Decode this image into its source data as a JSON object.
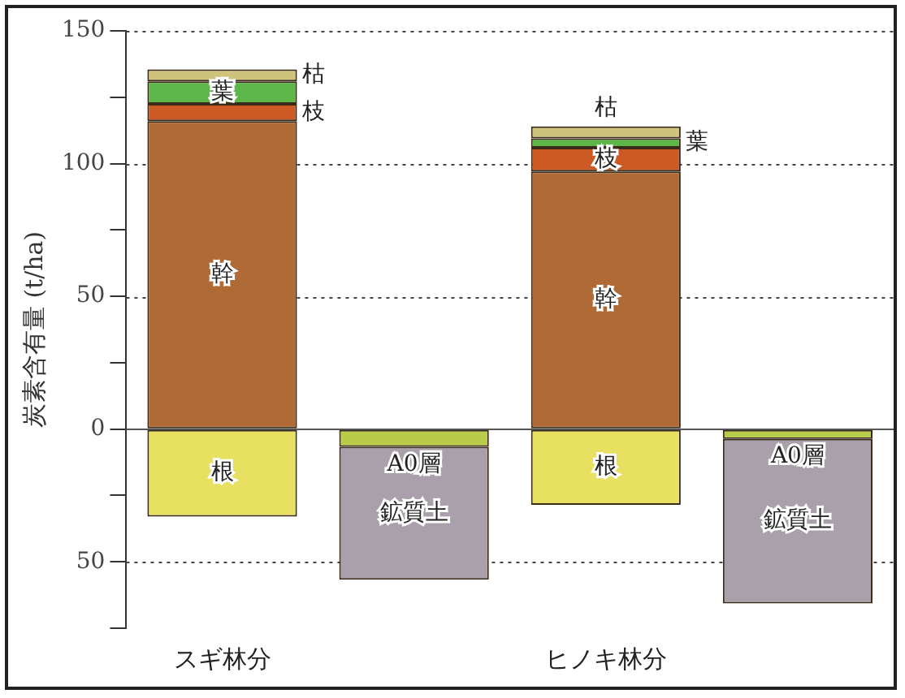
{
  "chart_data": {
    "type": "bar",
    "stacked": true,
    "ylabel": "炭素含有量 (t/ha)",
    "categories": [
      "スギ林分",
      null,
      "ヒノキ林分",
      null
    ],
    "series": [
      {
        "name": "幹",
        "color": "#b06a35",
        "values": [
          116,
          null,
          97,
          null
        ]
      },
      {
        "name": "枝",
        "color": "#cc5a25",
        "values": [
          6.5,
          null,
          9,
          null
        ]
      },
      {
        "name": "葉",
        "color": "#5cb648",
        "values": [
          8.5,
          null,
          3.5,
          null
        ]
      },
      {
        "name": "枯",
        "color": "#cfc27a",
        "values": [
          4.5,
          null,
          4.5,
          null
        ]
      },
      {
        "name": "根",
        "color": "#e8e060",
        "values": [
          -33,
          null,
          -28.5,
          null
        ]
      },
      {
        "name": "A0層",
        "color": "#b8cc4a",
        "values": [
          null,
          -6.7,
          null,
          -3.7
        ]
      },
      {
        "name": "鉱質土",
        "color": "#a9a0ab",
        "values": [
          null,
          -50,
          null,
          -62
        ]
      }
    ],
    "ylim": [
      -75,
      150
    ],
    "yticks": [
      {
        "value": 150,
        "label": "150"
      },
      {
        "value": 125,
        "label": null
      },
      {
        "value": 100,
        "label": "100"
      },
      {
        "value": 75,
        "label": null
      },
      {
        "value": 50,
        "label": "50"
      },
      {
        "value": 25,
        "label": null
      },
      {
        "value": 0,
        "label": "0"
      },
      {
        "value": -25,
        "label": null
      },
      {
        "value": -50,
        "label": "50"
      },
      {
        "value": -75,
        "label": null
      }
    ],
    "grid": "y",
    "legend": false
  }
}
